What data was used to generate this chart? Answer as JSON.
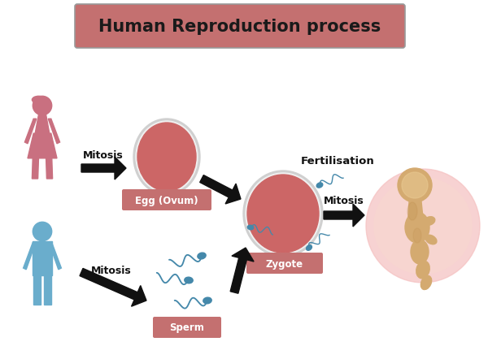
{
  "title": "Human Reproduction process",
  "title_box_color": "#c47070",
  "title_text_color": "#1a1a1a",
  "background_color": "#ffffff",
  "labels": {
    "egg": "Egg (Ovum)",
    "sperm": "Sperm",
    "zygote": "Zygote",
    "fertilisation": "Fertilisation",
    "mitosis_female": "Mitosis",
    "mitosis_male": "Mitosis",
    "mitosis_embryo": "Mitosis"
  },
  "label_box_color": "#c47070",
  "label_text_color": "#ffffff",
  "female_color": "#c97080",
  "male_color": "#6aadcc",
  "egg_outer_color": "#d0d0d0",
  "egg_white_color": "#f0f0f0",
  "egg_inner_color": "#cc6666",
  "sperm_color": "#4488aa",
  "embryo_bg": "#f5c0c0",
  "embryo_color": "#d4aa70",
  "embryo_shadow": "#c09050",
  "arrow_color": "#111111",
  "figsize": [
    6.0,
    4.42
  ],
  "dpi": 100
}
